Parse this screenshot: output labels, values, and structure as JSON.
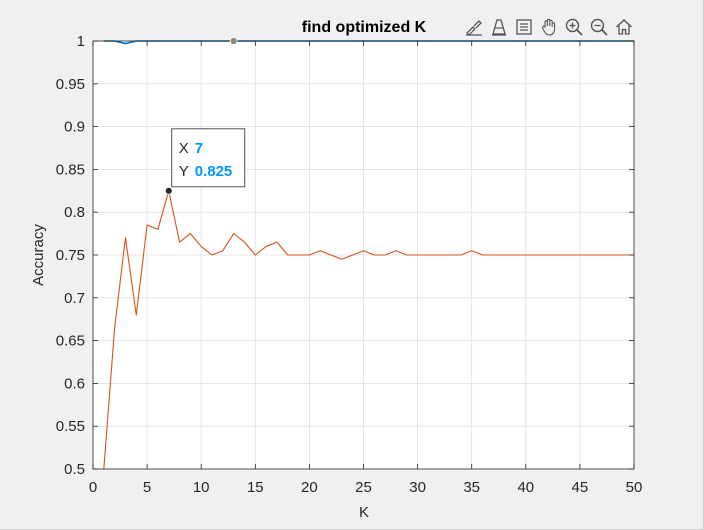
{
  "toolbar": {
    "icons": [
      "brush-icon",
      "data-cursor-icon",
      "legend-icon",
      "pan-icon",
      "zoom-in-icon",
      "zoom-out-icon",
      "home-icon"
    ]
  },
  "colors": {
    "series1": "#0072bd",
    "series2": "#d95319",
    "grid": "#dfdfdf",
    "tooltip_value": "#0096ff"
  },
  "chart_data": {
    "type": "line",
    "title": "find optimized K",
    "xlabel": "K",
    "ylabel": "Accuracy",
    "xlim": [
      0,
      50
    ],
    "ylim": [
      0.5,
      1
    ],
    "xticks": [
      0,
      5,
      10,
      15,
      20,
      25,
      30,
      35,
      40,
      45,
      50
    ],
    "yticks": [
      0.5,
      0.55,
      0.6,
      0.65,
      0.7,
      0.75,
      0.8,
      0.85,
      0.9,
      0.95,
      1
    ],
    "xtick_labels": [
      "0",
      "5",
      "10",
      "15",
      "20",
      "25",
      "30",
      "35",
      "40",
      "45",
      "50"
    ],
    "ytick_labels": [
      "0.5",
      "0.55",
      "0.6",
      "0.65",
      "0.7",
      "0.75",
      "0.8",
      "0.85",
      "0.9",
      "0.95",
      "1"
    ],
    "grid": true,
    "x": [
      1,
      2,
      3,
      4,
      5,
      6,
      7,
      8,
      9,
      10,
      11,
      12,
      13,
      14,
      15,
      16,
      17,
      18,
      19,
      20,
      21,
      22,
      23,
      24,
      25,
      26,
      27,
      28,
      29,
      30,
      31,
      32,
      33,
      34,
      35,
      36,
      37,
      38,
      39,
      40,
      41,
      42,
      43,
      44,
      45,
      46,
      47,
      48,
      49,
      50
    ],
    "series": [
      {
        "values": [
          1,
          1,
          0.997,
          1,
          1,
          1,
          1,
          1,
          1,
          1,
          1,
          1,
          1,
          1,
          1,
          1,
          1,
          1,
          1,
          1,
          1,
          1,
          1,
          1,
          1,
          1,
          1,
          1,
          1,
          1,
          1,
          1,
          1,
          1,
          1,
          1,
          1,
          1,
          1,
          1,
          1,
          1,
          1,
          1,
          1,
          1,
          1,
          1,
          1,
          1
        ]
      },
      {
        "values": [
          0.5,
          0.665,
          0.77,
          0.68,
          0.785,
          0.78,
          0.825,
          0.765,
          0.775,
          0.76,
          0.75,
          0.755,
          0.775,
          0.765,
          0.75,
          0.76,
          0.765,
          0.75,
          0.75,
          0.75,
          0.755,
          0.75,
          0.745,
          0.75,
          0.755,
          0.75,
          0.75,
          0.755,
          0.75,
          0.75,
          0.75,
          0.75,
          0.75,
          0.75,
          0.755,
          0.75,
          0.75,
          0.75,
          0.75,
          0.75,
          0.75,
          0.75,
          0.75,
          0.75,
          0.75,
          0.75,
          0.75,
          0.75,
          0.75,
          0.75
        ]
      }
    ],
    "datatips": [
      {
        "series": 2,
        "x": 7,
        "y": 0.825,
        "x_label": "X",
        "y_label": "Y",
        "x_text": "7",
        "y_text": "0.825",
        "visible_box": true
      },
      {
        "series": 1,
        "x": 13,
        "y": 1,
        "visible_box": false
      }
    ]
  }
}
